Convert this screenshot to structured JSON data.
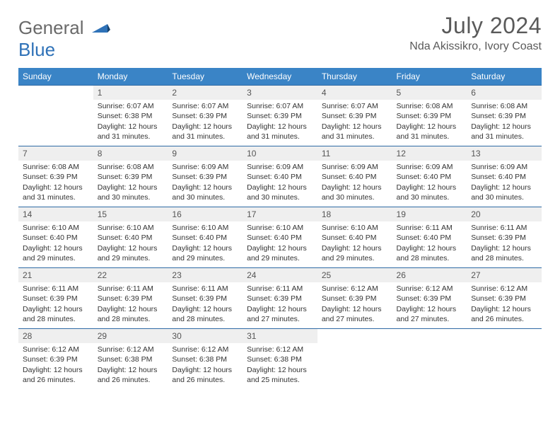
{
  "logo": {
    "line1": "General",
    "line2": "Blue"
  },
  "title": "July 2024",
  "location": "Nda Akissikro, Ivory Coast",
  "colors": {
    "header_bg": "#3a84c6",
    "border": "#2f6aa5",
    "daynum_bg": "#efefef",
    "text": "#333333",
    "logo_gray": "#6a6a6a",
    "logo_blue": "#2f72b8"
  },
  "day_headers": [
    "Sunday",
    "Monday",
    "Tuesday",
    "Wednesday",
    "Thursday",
    "Friday",
    "Saturday"
  ],
  "weeks": [
    [
      {
        "n": "",
        "empty": true
      },
      {
        "n": "1",
        "sr": "6:07 AM",
        "ss": "6:38 PM",
        "dl": "12 hours and 31 minutes."
      },
      {
        "n": "2",
        "sr": "6:07 AM",
        "ss": "6:39 PM",
        "dl": "12 hours and 31 minutes."
      },
      {
        "n": "3",
        "sr": "6:07 AM",
        "ss": "6:39 PM",
        "dl": "12 hours and 31 minutes."
      },
      {
        "n": "4",
        "sr": "6:07 AM",
        "ss": "6:39 PM",
        "dl": "12 hours and 31 minutes."
      },
      {
        "n": "5",
        "sr": "6:08 AM",
        "ss": "6:39 PM",
        "dl": "12 hours and 31 minutes."
      },
      {
        "n": "6",
        "sr": "6:08 AM",
        "ss": "6:39 PM",
        "dl": "12 hours and 31 minutes."
      }
    ],
    [
      {
        "n": "7",
        "sr": "6:08 AM",
        "ss": "6:39 PM",
        "dl": "12 hours and 31 minutes."
      },
      {
        "n": "8",
        "sr": "6:08 AM",
        "ss": "6:39 PM",
        "dl": "12 hours and 30 minutes."
      },
      {
        "n": "9",
        "sr": "6:09 AM",
        "ss": "6:39 PM",
        "dl": "12 hours and 30 minutes."
      },
      {
        "n": "10",
        "sr": "6:09 AM",
        "ss": "6:40 PM",
        "dl": "12 hours and 30 minutes."
      },
      {
        "n": "11",
        "sr": "6:09 AM",
        "ss": "6:40 PM",
        "dl": "12 hours and 30 minutes."
      },
      {
        "n": "12",
        "sr": "6:09 AM",
        "ss": "6:40 PM",
        "dl": "12 hours and 30 minutes."
      },
      {
        "n": "13",
        "sr": "6:09 AM",
        "ss": "6:40 PM",
        "dl": "12 hours and 30 minutes."
      }
    ],
    [
      {
        "n": "14",
        "sr": "6:10 AM",
        "ss": "6:40 PM",
        "dl": "12 hours and 29 minutes."
      },
      {
        "n": "15",
        "sr": "6:10 AM",
        "ss": "6:40 PM",
        "dl": "12 hours and 29 minutes."
      },
      {
        "n": "16",
        "sr": "6:10 AM",
        "ss": "6:40 PM",
        "dl": "12 hours and 29 minutes."
      },
      {
        "n": "17",
        "sr": "6:10 AM",
        "ss": "6:40 PM",
        "dl": "12 hours and 29 minutes."
      },
      {
        "n": "18",
        "sr": "6:10 AM",
        "ss": "6:40 PM",
        "dl": "12 hours and 29 minutes."
      },
      {
        "n": "19",
        "sr": "6:11 AM",
        "ss": "6:40 PM",
        "dl": "12 hours and 28 minutes."
      },
      {
        "n": "20",
        "sr": "6:11 AM",
        "ss": "6:39 PM",
        "dl": "12 hours and 28 minutes."
      }
    ],
    [
      {
        "n": "21",
        "sr": "6:11 AM",
        "ss": "6:39 PM",
        "dl": "12 hours and 28 minutes."
      },
      {
        "n": "22",
        "sr": "6:11 AM",
        "ss": "6:39 PM",
        "dl": "12 hours and 28 minutes."
      },
      {
        "n": "23",
        "sr": "6:11 AM",
        "ss": "6:39 PM",
        "dl": "12 hours and 28 minutes."
      },
      {
        "n": "24",
        "sr": "6:11 AM",
        "ss": "6:39 PM",
        "dl": "12 hours and 27 minutes."
      },
      {
        "n": "25",
        "sr": "6:12 AM",
        "ss": "6:39 PM",
        "dl": "12 hours and 27 minutes."
      },
      {
        "n": "26",
        "sr": "6:12 AM",
        "ss": "6:39 PM",
        "dl": "12 hours and 27 minutes."
      },
      {
        "n": "27",
        "sr": "6:12 AM",
        "ss": "6:39 PM",
        "dl": "12 hours and 26 minutes."
      }
    ],
    [
      {
        "n": "28",
        "sr": "6:12 AM",
        "ss": "6:39 PM",
        "dl": "12 hours and 26 minutes."
      },
      {
        "n": "29",
        "sr": "6:12 AM",
        "ss": "6:38 PM",
        "dl": "12 hours and 26 minutes."
      },
      {
        "n": "30",
        "sr": "6:12 AM",
        "ss": "6:38 PM",
        "dl": "12 hours and 26 minutes."
      },
      {
        "n": "31",
        "sr": "6:12 AM",
        "ss": "6:38 PM",
        "dl": "12 hours and 25 minutes."
      },
      {
        "n": "",
        "empty": true,
        "noborder": false
      },
      {
        "n": "",
        "empty": true,
        "noborder": false
      },
      {
        "n": "",
        "empty": true,
        "noborder": false
      }
    ]
  ],
  "labels": {
    "sunrise": "Sunrise:",
    "sunset": "Sunset:",
    "daylight": "Daylight:"
  }
}
